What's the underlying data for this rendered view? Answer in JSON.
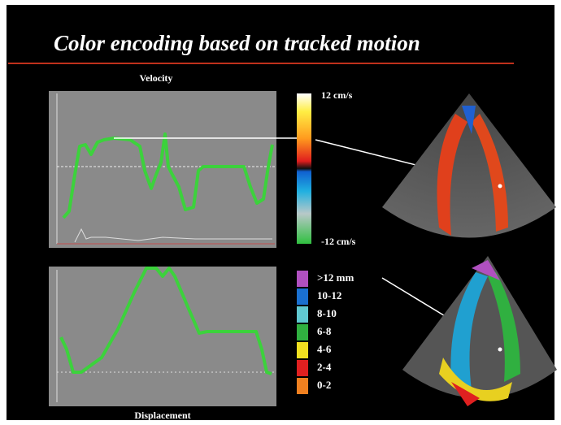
{
  "slide": {
    "title": "Color encoding based on tracked motion",
    "velocity": {
      "label": "Velocity",
      "scale_top": "12 cm/s",
      "scale_bottom": "-12 cm/s"
    },
    "displacement": {
      "label": "Displacement",
      "legend": [
        ">12 mm",
        "10-12",
        "8-10",
        "6-8",
        "4-6",
        "2-4",
        "0-2"
      ]
    }
  }
}
